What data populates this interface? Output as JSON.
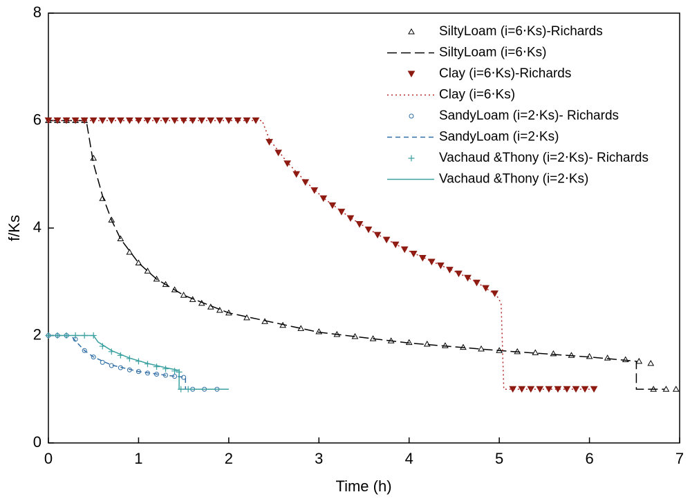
{
  "chart_data": {
    "type": "line",
    "x_label": "Time (h)",
    "y_label": "f/Ks",
    "xlim": [
      0,
      7
    ],
    "xticks": [
      0,
      1,
      2,
      3,
      4,
      5,
      6,
      7
    ],
    "ylim": [
      0,
      8
    ],
    "yticks": [
      0,
      2,
      4,
      6,
      8
    ],
    "legend": "top-right",
    "series": [
      {
        "name": "SiltyLoam (i=6⋅Ks)-Richards",
        "color": "#000000",
        "marker": "triangle-up",
        "x": [
          0,
          0.1,
          0.2,
          0.3,
          0.4,
          0.5,
          0.6,
          0.7,
          0.8,
          0.9,
          1.0,
          1.1,
          1.2,
          1.3,
          1.4,
          1.5,
          1.6,
          1.7,
          1.8,
          1.9,
          2.0,
          2.2,
          2.4,
          2.6,
          2.8,
          3.0,
          3.2,
          3.4,
          3.6,
          3.8,
          4.0,
          4.2,
          4.4,
          4.6,
          4.8,
          5.0,
          5.2,
          5.4,
          5.6,
          5.8,
          6.0,
          6.2,
          6.4,
          6.55,
          6.68,
          6.71,
          6.85,
          6.96
        ],
        "values": [
          6,
          6,
          6,
          6,
          6,
          5.3,
          4.55,
          4.15,
          3.8,
          3.55,
          3.35,
          3.2,
          3.05,
          2.95,
          2.85,
          2.75,
          2.67,
          2.6,
          2.53,
          2.47,
          2.42,
          2.33,
          2.26,
          2.19,
          2.13,
          2.07,
          2.02,
          1.98,
          1.94,
          1.9,
          1.87,
          1.84,
          1.81,
          1.78,
          1.75,
          1.72,
          1.7,
          1.68,
          1.66,
          1.63,
          1.61,
          1.58,
          1.55,
          1.52,
          1.48,
          1.0,
          1.0,
          1.0
        ]
      },
      {
        "name": "SiltyLoam (i=6⋅Ks)",
        "color": "#000000",
        "dash": "long-dash",
        "x": [
          0,
          0.42,
          0.5,
          0.6,
          0.7,
          0.8,
          1.0,
          1.2,
          1.5,
          2.0,
          3.0,
          4.0,
          5.0,
          6.0,
          6.52,
          6.52,
          6.83
        ],
        "values": [
          6,
          6,
          5.2,
          4.6,
          4.15,
          3.8,
          3.35,
          3.05,
          2.75,
          2.42,
          2.06,
          1.86,
          1.72,
          1.6,
          1.52,
          1.0,
          1.0
        ]
      },
      {
        "name": "Clay (i=6⋅Ks)-Richards",
        "color": "#8b1a10",
        "marker": "triangle-down",
        "x": [
          0,
          0.1,
          0.2,
          0.3,
          0.4,
          0.5,
          0.6,
          0.7,
          0.8,
          0.9,
          1.0,
          1.1,
          1.2,
          1.3,
          1.4,
          1.5,
          1.6,
          1.7,
          1.8,
          1.9,
          2.0,
          2.1,
          2.2,
          2.3,
          2.45,
          2.55,
          2.65,
          2.75,
          2.85,
          2.95,
          3.05,
          3.15,
          3.25,
          3.35,
          3.45,
          3.55,
          3.65,
          3.75,
          3.85,
          3.95,
          4.05,
          4.15,
          4.25,
          4.35,
          4.45,
          4.55,
          4.65,
          4.75,
          4.85,
          4.95,
          5.15,
          5.25,
          5.35,
          5.45,
          5.55,
          5.65,
          5.75,
          5.85,
          5.95,
          6.05
        ],
        "values": [
          6,
          6,
          6,
          6,
          6,
          6,
          6,
          6,
          6,
          6,
          6,
          6,
          6,
          6,
          6,
          6,
          6,
          6,
          6,
          6,
          6,
          6,
          6,
          6,
          5.6,
          5.4,
          5.2,
          5.0,
          4.85,
          4.7,
          4.55,
          4.42,
          4.3,
          4.18,
          4.07,
          3.97,
          3.87,
          3.78,
          3.69,
          3.6,
          3.52,
          3.44,
          3.37,
          3.3,
          3.22,
          3.15,
          3.07,
          2.98,
          2.88,
          2.78,
          1.0,
          1.0,
          1.0,
          1.0,
          1.0,
          1.0,
          1.0,
          1.0,
          1.0,
          1.0
        ]
      },
      {
        "name": "Clay (i=6⋅Ks)",
        "color": "#b22222",
        "dash": "dotted",
        "x": [
          0,
          2.37,
          2.45,
          2.65,
          2.85,
          3.05,
          3.35,
          3.65,
          3.95,
          4.25,
          4.55,
          4.75,
          4.97,
          5.02,
          5.05,
          6.07
        ],
        "values": [
          6,
          6,
          5.65,
          5.22,
          4.87,
          4.56,
          4.19,
          3.88,
          3.61,
          3.38,
          3.16,
          2.99,
          2.75,
          2.6,
          1.0,
          1.0
        ]
      },
      {
        "name": "SandyLoam (i=2⋅Ks)- Richards",
        "color": "#2f6ea6",
        "marker": "circle",
        "x": [
          0,
          0.1,
          0.2,
          0.3,
          0.4,
          0.5,
          0.6,
          0.7,
          0.8,
          0.9,
          1.0,
          1.1,
          1.2,
          1.3,
          1.4,
          1.5,
          1.6,
          1.73,
          1.87
        ],
        "values": [
          2,
          2,
          2,
          1.93,
          1.72,
          1.6,
          1.5,
          1.44,
          1.4,
          1.36,
          1.33,
          1.3,
          1.28,
          1.26,
          1.24,
          1.22,
          1.0,
          1.0,
          1.0
        ]
      },
      {
        "name": "SandyLoam (i=2⋅Ks)",
        "color": "#2f6ea6",
        "dash": "dashed",
        "x": [
          0,
          0.25,
          0.3,
          0.4,
          0.5,
          0.7,
          1.0,
          1.3,
          1.52,
          1.52,
          1.56
        ],
        "values": [
          2,
          2,
          1.9,
          1.72,
          1.6,
          1.45,
          1.33,
          1.26,
          1.22,
          1.0,
          1.0
        ]
      },
      {
        "name": "Vachaud &Thony (i=2⋅Ks)- Richards",
        "color": "#3aa0a0",
        "marker": "plus",
        "x": [
          0,
          0.1,
          0.2,
          0.3,
          0.4,
          0.5,
          0.6,
          0.7,
          0.8,
          0.9,
          1.0,
          1.1,
          1.2,
          1.3,
          1.4,
          1.45,
          1.47,
          1.55
        ],
        "values": [
          2,
          2,
          2,
          2,
          2,
          2,
          1.8,
          1.7,
          1.63,
          1.57,
          1.52,
          1.47,
          1.42,
          1.38,
          1.34,
          1.32,
          1.0,
          1.0
        ]
      },
      {
        "name": "Vachaud &Thony (i=2⋅Ks)",
        "color": "#3aa0a0",
        "dash": "solid",
        "x": [
          0,
          0.5,
          0.55,
          0.7,
          0.9,
          1.1,
          1.3,
          1.45,
          1.45,
          2.0
        ],
        "values": [
          2,
          2,
          1.88,
          1.72,
          1.58,
          1.48,
          1.4,
          1.35,
          1.0,
          1.0
        ]
      }
    ]
  }
}
